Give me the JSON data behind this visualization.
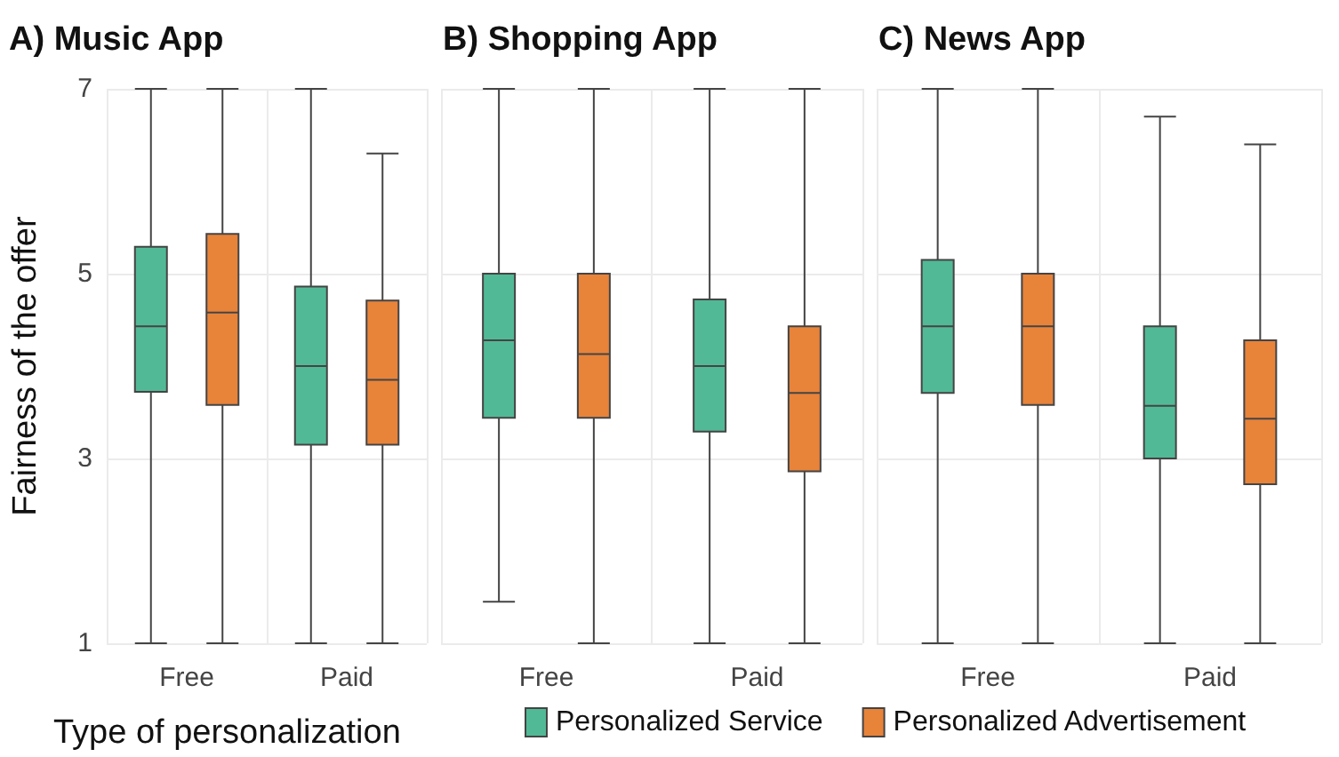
{
  "chart_data": [
    {
      "type": "box",
      "title": "A) Music App",
      "ylabel": "Fairness of the offer",
      "categories": [
        "Free",
        "Paid"
      ],
      "ylim": [
        1,
        7
      ],
      "yticks": [
        1,
        3,
        5,
        7
      ],
      "grid": true,
      "legend": "bottom",
      "legend_title": "Type of personalization",
      "series": [
        {
          "name": "Personalized Service",
          "color": "#52b996",
          "boxes": [
            {
              "low": 1,
              "q1": 3.72,
              "median": 4.43,
              "q3": 5.29,
              "high": 7
            },
            {
              "low": 1,
              "q1": 3.15,
              "median": 4.0,
              "q3": 4.86,
              "high": 7
            }
          ]
        },
        {
          "name": "Personalized Advertisement",
          "color": "#e8833a",
          "boxes": [
            {
              "low": 1,
              "q1": 3.58,
              "median": 4.58,
              "q3": 5.43,
              "high": 7
            },
            {
              "low": 1,
              "q1": 3.15,
              "median": 3.85,
              "q3": 4.71,
              "high": 6.3
            }
          ]
        }
      ]
    },
    {
      "type": "box",
      "title": "B) Shopping App",
      "categories": [
        "Free",
        "Paid"
      ],
      "ylim": [
        1,
        7
      ],
      "yticks": [
        1,
        3,
        5,
        7
      ],
      "grid": true,
      "tick_labels": "x",
      "series": [
        {
          "color": "#52b996",
          "boxes": [
            {
              "low": 1.45,
              "q1": 3.44,
              "median": 4.28,
              "q3": 5.0,
              "high": 7
            },
            {
              "low": 1,
              "q1": 3.29,
              "median": 4.0,
              "q3": 4.72,
              "high": 7
            }
          ]
        },
        {
          "color": "#e8833a",
          "boxes": [
            {
              "low": 1,
              "q1": 3.44,
              "median": 4.13,
              "q3": 5.0,
              "high": 7
            },
            {
              "low": 1,
              "q1": 2.86,
              "median": 3.71,
              "q3": 4.43,
              "high": 7
            }
          ]
        }
      ]
    },
    {
      "type": "box",
      "title": "C) News App",
      "categories": [
        "Free",
        "Paid"
      ],
      "ylim": [
        1,
        7
      ],
      "yticks": [
        1,
        3,
        5,
        7
      ],
      "grid": true,
      "tick_labels": "x",
      "series": [
        {
          "color": "#52b996",
          "boxes": [
            {
              "low": 1,
              "q1": 3.71,
              "median": 4.43,
              "q3": 5.15,
              "high": 7
            },
            {
              "low": 1,
              "q1": 3.0,
              "median": 3.57,
              "q3": 4.43,
              "high": 6.7
            }
          ]
        },
        {
          "color": "#e8833a",
          "boxes": [
            {
              "low": 1,
              "q1": 3.58,
              "median": 4.43,
              "q3": 5.0,
              "high": 7
            },
            {
              "low": 1,
              "q1": 2.72,
              "median": 3.43,
              "q3": 4.28,
              "high": 6.4
            }
          ]
        }
      ]
    }
  ]
}
